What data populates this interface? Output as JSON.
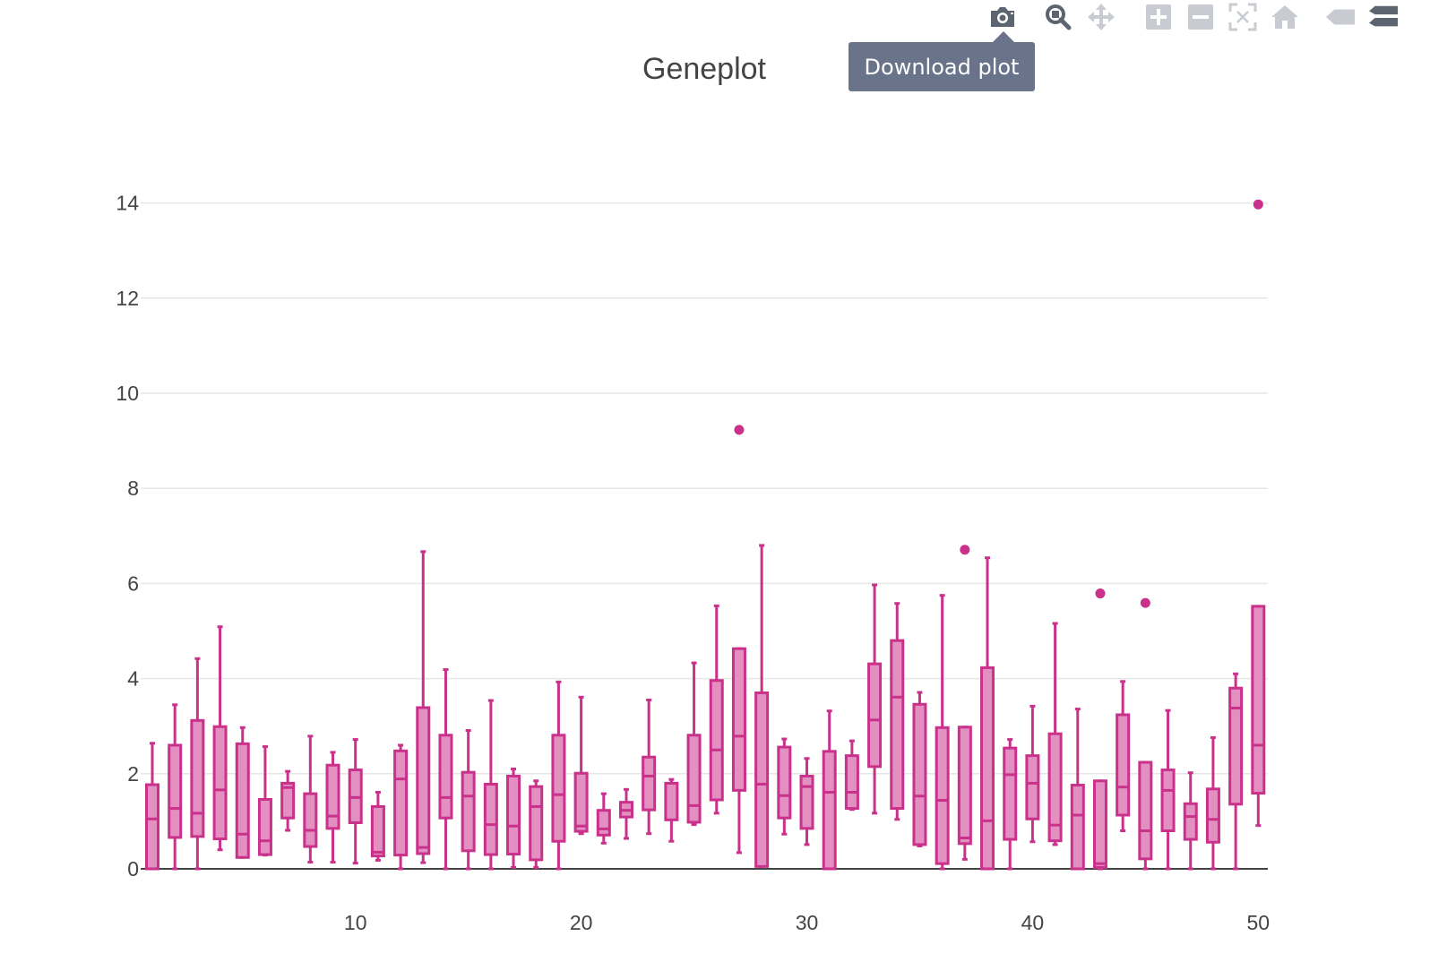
{
  "toolbar": {
    "buttons": [
      {
        "name": "camera-icon",
        "label": "Download plot"
      },
      {
        "name": "zoom-icon",
        "label": "Zoom"
      },
      {
        "name": "pan-icon",
        "label": "Pan"
      },
      {
        "name": "zoom-in-icon",
        "label": "Zoom in"
      },
      {
        "name": "zoom-out-icon",
        "label": "Zoom out"
      },
      {
        "name": "autoscale-icon",
        "label": "Autoscale"
      },
      {
        "name": "home-icon",
        "label": "Reset axes"
      },
      {
        "name": "hover-closest-icon",
        "label": "Show closest data on hover"
      },
      {
        "name": "hover-compare-icon",
        "label": "Compare data on hover"
      }
    ],
    "tooltip": "Download plot"
  },
  "chart_data": {
    "type": "box",
    "title": "Geneplot",
    "xlabel": "",
    "ylabel": "",
    "color": "#c9318b",
    "fill": "#e38fc2",
    "xlim": [
      0.4,
      50.4
    ],
    "ylim": [
      0,
      15.5
    ],
    "xticks": [
      10,
      20,
      30,
      40,
      50
    ],
    "yticks": [
      0,
      2,
      4,
      6,
      8,
      10,
      12,
      14
    ],
    "grid": true,
    "legend": "none",
    "boxes": [
      {
        "x": 1,
        "min": 0,
        "q1": 0,
        "median": 1.05,
        "q3": 1.77,
        "max": 2.64
      },
      {
        "x": 2,
        "min": 0,
        "q1": 0.66,
        "median": 1.27,
        "q3": 2.6,
        "max": 3.45
      },
      {
        "x": 3,
        "min": 0,
        "q1": 0.68,
        "median": 1.17,
        "q3": 3.12,
        "max": 4.42
      },
      {
        "x": 4,
        "min": 0.4,
        "q1": 0.63,
        "median": 1.66,
        "q3": 2.99,
        "max": 5.09
      },
      {
        "x": 5,
        "min": 0.24,
        "q1": 0.24,
        "median": 0.73,
        "q3": 2.63,
        "max": 2.97
      },
      {
        "x": 6,
        "min": 0.29,
        "q1": 0.3,
        "median": 0.59,
        "q3": 1.46,
        "max": 2.57
      },
      {
        "x": 7,
        "min": 0.81,
        "q1": 1.07,
        "median": 1.71,
        "q3": 1.8,
        "max": 2.05
      },
      {
        "x": 8,
        "min": 0.14,
        "q1": 0.47,
        "median": 0.81,
        "q3": 1.58,
        "max": 2.79
      },
      {
        "x": 9,
        "min": 0.14,
        "q1": 0.85,
        "median": 1.11,
        "q3": 2.18,
        "max": 2.45
      },
      {
        "x": 10,
        "min": 0.12,
        "q1": 0.97,
        "median": 1.5,
        "q3": 2.08,
        "max": 2.72
      },
      {
        "x": 11,
        "min": 0.18,
        "q1": 0.27,
        "median": 0.35,
        "q3": 1.31,
        "max": 1.61
      },
      {
        "x": 12,
        "min": 0,
        "q1": 0.29,
        "median": 1.89,
        "q3": 2.48,
        "max": 2.6
      },
      {
        "x": 13,
        "min": 0.13,
        "q1": 0.32,
        "median": 0.45,
        "q3": 3.39,
        "max": 6.67
      },
      {
        "x": 14,
        "min": 0,
        "q1": 1.07,
        "median": 1.5,
        "q3": 2.81,
        "max": 4.19
      },
      {
        "x": 15,
        "min": 0,
        "q1": 0.38,
        "median": 1.53,
        "q3": 2.03,
        "max": 2.91
      },
      {
        "x": 16,
        "min": 0,
        "q1": 0.3,
        "median": 0.93,
        "q3": 1.78,
        "max": 3.54
      },
      {
        "x": 17,
        "min": 0.03,
        "q1": 0.31,
        "median": 0.9,
        "q3": 1.95,
        "max": 2.1
      },
      {
        "x": 18,
        "min": 0.03,
        "q1": 0.19,
        "median": 1.31,
        "q3": 1.73,
        "max": 1.85
      },
      {
        "x": 19,
        "min": 0,
        "q1": 0.58,
        "median": 1.56,
        "q3": 2.81,
        "max": 3.93
      },
      {
        "x": 20,
        "min": 0.74,
        "q1": 0.79,
        "median": 0.9,
        "q3": 2.01,
        "max": 3.61
      },
      {
        "x": 21,
        "min": 0.54,
        "q1": 0.71,
        "median": 0.84,
        "q3": 1.23,
        "max": 1.58
      },
      {
        "x": 22,
        "min": 0.64,
        "q1": 1.09,
        "median": 1.23,
        "q3": 1.4,
        "max": 1.67
      },
      {
        "x": 23,
        "min": 0.74,
        "q1": 1.24,
        "median": 1.95,
        "q3": 2.35,
        "max": 3.55
      },
      {
        "x": 24,
        "min": 0.58,
        "q1": 1.03,
        "median": 1.8,
        "q3": 1.8,
        "max": 1.88
      },
      {
        "x": 25,
        "min": 0.93,
        "q1": 0.98,
        "median": 1.33,
        "q3": 2.81,
        "max": 4.33
      },
      {
        "x": 26,
        "min": 1.17,
        "q1": 1.45,
        "median": 2.5,
        "q3": 3.96,
        "max": 5.53
      },
      {
        "x": 27,
        "min": 0.34,
        "q1": 1.65,
        "median": 2.79,
        "q3": 4.63,
        "max": 4.63,
        "outliers": [
          9.23
        ]
      },
      {
        "x": 28,
        "min": 0.05,
        "q1": 0.05,
        "median": 1.78,
        "q3": 3.7,
        "max": 6.8
      },
      {
        "x": 29,
        "min": 0.73,
        "q1": 1.07,
        "median": 1.54,
        "q3": 2.56,
        "max": 2.73
      },
      {
        "x": 30,
        "min": 0.51,
        "q1": 0.85,
        "median": 1.73,
        "q3": 1.95,
        "max": 2.32
      },
      {
        "x": 31,
        "min": 0,
        "q1": 0,
        "median": 1.61,
        "q3": 2.47,
        "max": 3.32
      },
      {
        "x": 32,
        "min": 1.25,
        "q1": 1.27,
        "median": 1.61,
        "q3": 2.38,
        "max": 2.69
      },
      {
        "x": 33,
        "min": 1.17,
        "q1": 2.15,
        "median": 3.13,
        "q3": 4.31,
        "max": 5.97
      },
      {
        "x": 34,
        "min": 1.04,
        "q1": 1.27,
        "median": 3.61,
        "q3": 4.8,
        "max": 5.58
      },
      {
        "x": 35,
        "min": 0.48,
        "q1": 0.51,
        "median": 1.53,
        "q3": 3.46,
        "max": 3.71
      },
      {
        "x": 36,
        "min": 0,
        "q1": 0.11,
        "median": 1.44,
        "q3": 2.97,
        "max": 5.75
      },
      {
        "x": 37,
        "min": 0.2,
        "q1": 0.53,
        "median": 0.65,
        "q3": 2.98,
        "max": 2.98,
        "outliers": [
          6.71
        ]
      },
      {
        "x": 38,
        "min": 0,
        "q1": 0,
        "median": 1.01,
        "q3": 4.23,
        "max": 6.54
      },
      {
        "x": 39,
        "min": 0,
        "q1": 0.62,
        "median": 1.98,
        "q3": 2.54,
        "max": 2.72
      },
      {
        "x": 40,
        "min": 0.57,
        "q1": 1.05,
        "median": 1.8,
        "q3": 2.38,
        "max": 3.42
      },
      {
        "x": 41,
        "min": 0.51,
        "q1": 0.59,
        "median": 0.92,
        "q3": 2.84,
        "max": 5.16
      },
      {
        "x": 42,
        "min": 0,
        "q1": 0,
        "median": 1.13,
        "q3": 1.76,
        "max": 3.36
      },
      {
        "x": 43,
        "min": 0,
        "q1": 0.03,
        "median": 0.11,
        "q3": 1.85,
        "max": 1.85,
        "outliers": [
          5.79
        ]
      },
      {
        "x": 44,
        "min": 0.8,
        "q1": 1.13,
        "median": 1.72,
        "q3": 3.24,
        "max": 3.94
      },
      {
        "x": 45,
        "min": 0,
        "q1": 0.21,
        "median": 0.8,
        "q3": 2.24,
        "max": 2.24,
        "outliers": [
          5.59
        ]
      },
      {
        "x": 46,
        "min": 0,
        "q1": 0.8,
        "median": 1.65,
        "q3": 2.08,
        "max": 3.33
      },
      {
        "x": 47,
        "min": 0,
        "q1": 0.62,
        "median": 1.1,
        "q3": 1.37,
        "max": 2.02
      },
      {
        "x": 48,
        "min": 0,
        "q1": 0.56,
        "median": 1.04,
        "q3": 1.68,
        "max": 2.76
      },
      {
        "x": 49,
        "min": 0,
        "q1": 1.36,
        "median": 3.38,
        "q3": 3.8,
        "max": 4.1
      },
      {
        "x": 50,
        "min": 0.91,
        "q1": 1.59,
        "median": 2.6,
        "q3": 5.52,
        "max": 5.52,
        "outliers": [
          13.97
        ]
      }
    ]
  }
}
